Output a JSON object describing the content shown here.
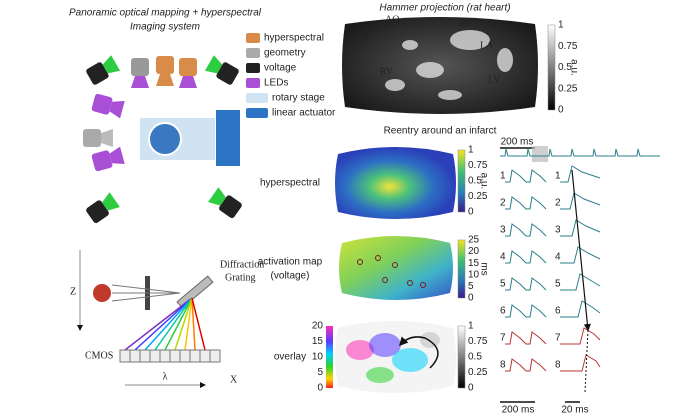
{
  "left_panel": {
    "title": [
      "Panoramic optical mapping + hyperspectral",
      "Imaging system"
    ],
    "legend": [
      "hyperspectral",
      "geometry",
      "voltage",
      "LEDs",
      "rotary stage",
      "linear actuator"
    ]
  },
  "spectrometer": {
    "grating": [
      "Diffraction",
      "Grating"
    ],
    "z_axis": "Z",
    "sensor": "CMOS",
    "wavelength": "λ",
    "x_axis": "X"
  },
  "hammer": {
    "title": "Hammer projection (rat heart)",
    "regions": [
      "AO",
      "PA",
      "RA",
      "LA",
      "RV",
      "LV"
    ],
    "colorbar": [
      "1",
      "0.75",
      "0.5",
      "0.25",
      "0"
    ],
    "unit": "a.u."
  },
  "reentry": {
    "title": "Reentry around an infarct",
    "maps": [
      {
        "label": [
          "hyperspectral"
        ],
        "colorbar": [
          "1",
          "0.75",
          "0.5",
          "0.25",
          "0"
        ],
        "unit": "a.u."
      },
      {
        "label": [
          "activation map",
          "(voltage)"
        ],
        "colorbar": [
          "25",
          "20",
          "15",
          "10",
          "5",
          "0"
        ],
        "unit": "ms"
      },
      {
        "label": [
          "overlay"
        ],
        "colorbar": [
          "20",
          "15",
          "10",
          "5",
          "0"
        ],
        "colorbar2": [
          "1",
          "0.75",
          "0.5",
          "0.25",
          "0"
        ]
      }
    ]
  },
  "traces": {
    "top_scale": "200 ms",
    "labels": [
      "1",
      "2",
      "3",
      "4",
      "5",
      "6",
      "7",
      "8"
    ],
    "bottom_scales": [
      "200 ms",
      "20 ms"
    ]
  }
}
